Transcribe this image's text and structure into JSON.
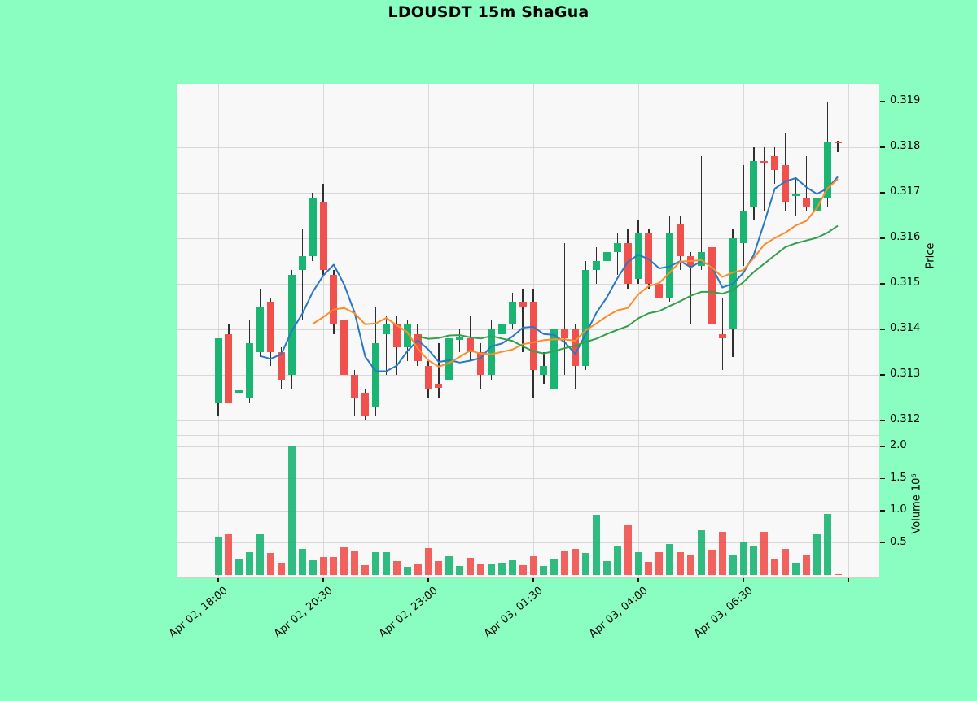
{
  "title": "LDOUSDT 15m ShaGua",
  "chart_data": {
    "type": "candlestick",
    "symbol": "LDOUSDT",
    "interval": "15m",
    "colors": {
      "up": "#1ab573",
      "down": "#f0514d",
      "wick": "#2f2f2f",
      "background": "#8afec1",
      "plot_background": "#f8f8f8",
      "grid": "#d8d8d8",
      "tick": "#111111"
    },
    "price_axis": {
      "title": "Price",
      "ticks": [
        0.319,
        0.318,
        0.317,
        0.316,
        0.315,
        0.314,
        0.313,
        0.312
      ],
      "range": [
        0.3117,
        0.3194
      ]
    },
    "volume_axis": {
      "title": "Volume  10⁶",
      "ticks": [
        2.0,
        1.5,
        1.0,
        0.5
      ],
      "unit": 1000000,
      "range": [
        0,
        2.18
      ]
    },
    "x_axis": {
      "ticks": [
        {
          "index": 0,
          "label": "Apr 02, 18:00"
        },
        {
          "index": 10,
          "label": "Apr 02, 20:30"
        },
        {
          "index": 20,
          "label": "Apr 02, 23:00"
        },
        {
          "index": 30,
          "label": "Apr 03, 01:30"
        },
        {
          "index": 40,
          "label": "Apr 03, 04:00"
        },
        {
          "index": 50,
          "label": "Apr 03, 06:30"
        },
        {
          "index": 60,
          "label": ""
        }
      ]
    },
    "indicators": [
      {
        "name": "MA5",
        "window": 5,
        "color": "#2878c8"
      },
      {
        "name": "MA10",
        "window": 10,
        "color": "#ff8c28"
      },
      {
        "name": "MA20",
        "window": 20,
        "color": "#33a04b"
      }
    ],
    "last_price": 0.3181,
    "series": {
      "ohlcv_order": [
        "open",
        "high",
        "low",
        "close",
        "volume_millions"
      ],
      "candles": [
        [
          0.3124,
          0.3138,
          0.3121,
          0.3138,
          0.59
        ],
        [
          0.3139,
          0.3141,
          0.3124,
          0.3124,
          0.63
        ],
        [
          0.3126,
          0.3131,
          0.3122,
          0.31267,
          0.24
        ],
        [
          0.3125,
          0.3142,
          0.3124,
          0.3137,
          0.35
        ],
        [
          0.3135,
          0.3149,
          0.3134,
          0.3145,
          0.63
        ],
        [
          0.3146,
          0.3147,
          0.3132,
          0.3135,
          0.34
        ],
        [
          0.3135,
          0.3136,
          0.3127,
          0.3129,
          0.19
        ],
        [
          0.313,
          0.3153,
          0.3127,
          0.3152,
          2.0
        ],
        [
          0.3153,
          0.3162,
          0.3142,
          0.3156,
          0.41
        ],
        [
          0.3156,
          0.317,
          0.3155,
          0.3169,
          0.23
        ],
        [
          0.3168,
          0.3172,
          0.3152,
          0.3153,
          0.28
        ],
        [
          0.3152,
          0.3153,
          0.3139,
          0.3141,
          0.28
        ],
        [
          0.3142,
          0.3143,
          0.3124,
          0.313,
          0.43
        ],
        [
          0.313,
          0.3131,
          0.3121,
          0.3125,
          0.38
        ],
        [
          0.3126,
          0.3127,
          0.312,
          0.3121,
          0.15
        ],
        [
          0.3123,
          0.3145,
          0.3121,
          0.3137,
          0.36
        ],
        [
          0.3139,
          0.3143,
          0.313,
          0.3141,
          0.35
        ],
        [
          0.3141,
          0.3143,
          0.313,
          0.3136,
          0.21
        ],
        [
          0.3136,
          0.3142,
          0.3133,
          0.3141,
          0.13
        ],
        [
          0.3139,
          0.3141,
          0.3132,
          0.3133,
          0.18
        ],
        [
          0.3132,
          0.3133,
          0.3125,
          0.3127,
          0.42
        ],
        [
          0.3128,
          0.3137,
          0.3125,
          0.31272,
          0.21
        ],
        [
          0.3129,
          0.3144,
          0.3128,
          0.3138,
          0.29
        ],
        [
          0.31376,
          0.314,
          0.3135,
          0.31384,
          0.14
        ],
        [
          0.3138,
          0.3143,
          0.3133,
          0.3135,
          0.26
        ],
        [
          0.3135,
          0.3137,
          0.3127,
          0.313,
          0.16
        ],
        [
          0.313,
          0.3142,
          0.3129,
          0.314,
          0.16
        ],
        [
          0.3139,
          0.3142,
          0.3133,
          0.3141,
          0.19
        ],
        [
          0.3141,
          0.3148,
          0.314,
          0.3146,
          0.23
        ],
        [
          0.3146,
          0.3149,
          0.3135,
          0.31448,
          0.15
        ],
        [
          0.3146,
          0.3149,
          0.3125,
          0.3131,
          0.29
        ],
        [
          0.313,
          0.3135,
          0.3128,
          0.3132,
          0.14
        ],
        [
          0.3127,
          0.3142,
          0.3126,
          0.314,
          0.24
        ],
        [
          0.314,
          0.3159,
          0.313,
          0.3138,
          0.38
        ],
        [
          0.314,
          0.3141,
          0.3127,
          0.3132,
          0.41
        ],
        [
          0.3132,
          0.3155,
          0.3131,
          0.3153,
          0.34
        ],
        [
          0.3153,
          0.3158,
          0.315,
          0.3155,
          0.94
        ],
        [
          0.3155,
          0.3163,
          0.3152,
          0.3157,
          0.21
        ],
        [
          0.3157,
          0.3161,
          0.3152,
          0.3159,
          0.44
        ],
        [
          0.3159,
          0.3162,
          0.3149,
          0.315,
          0.78
        ],
        [
          0.3151,
          0.3164,
          0.315,
          0.3161,
          0.35
        ],
        [
          0.3161,
          0.3162,
          0.3149,
          0.315,
          0.2
        ],
        [
          0.315,
          0.3151,
          0.3142,
          0.3147,
          0.35
        ],
        [
          0.3147,
          0.3165,
          0.3146,
          0.3161,
          0.48
        ],
        [
          0.3163,
          0.3165,
          0.3153,
          0.3156,
          0.36
        ],
        [
          0.3156,
          0.3157,
          0.3141,
          0.3154,
          0.3
        ],
        [
          0.3154,
          0.3178,
          0.3153,
          0.3157,
          0.69
        ],
        [
          0.3158,
          0.3159,
          0.3139,
          0.3141,
          0.39
        ],
        [
          0.3139,
          0.3147,
          0.3131,
          0.3138,
          0.67
        ],
        [
          0.314,
          0.3162,
          0.3134,
          0.316,
          0.31
        ],
        [
          0.3159,
          0.3176,
          0.3154,
          0.3166,
          0.51
        ],
        [
          0.3167,
          0.318,
          0.3164,
          0.3177,
          0.45
        ],
        [
          0.3177,
          0.318,
          0.3166,
          0.31765,
          0.67
        ],
        [
          0.3178,
          0.318,
          0.3172,
          0.3175,
          0.25
        ],
        [
          0.3176,
          0.3183,
          0.3166,
          0.3168,
          0.4
        ],
        [
          0.31692,
          0.3173,
          0.3165,
          0.31697,
          0.19
        ],
        [
          0.3169,
          0.3178,
          0.3166,
          0.3167,
          0.31
        ],
        [
          0.3166,
          0.3175,
          0.3156,
          0.3169,
          0.63
        ],
        [
          0.3169,
          0.319,
          0.3167,
          0.3181,
          0.95
        ],
        [
          0.31812,
          0.31815,
          0.3179,
          0.31809,
          0.01
        ]
      ]
    }
  }
}
